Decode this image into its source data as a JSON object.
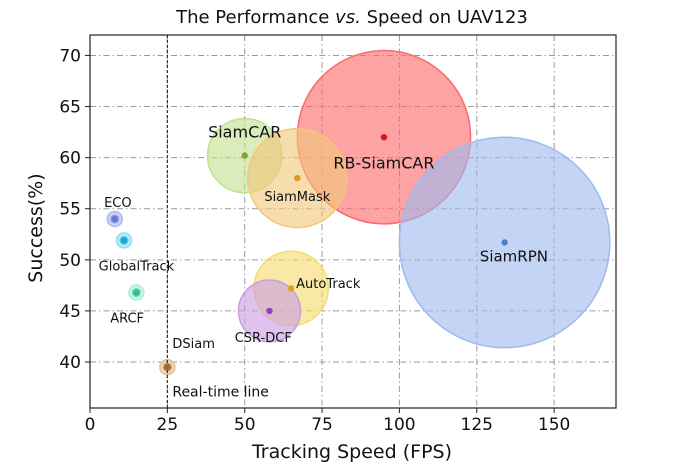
{
  "chart_data": {
    "type": "scatter",
    "title": {
      "part1": "The Performance ",
      "italic": "vs.",
      "part2": " Speed on UAV123"
    },
    "xlabel": "Tracking Speed (FPS)",
    "ylabel": "Success(%)",
    "xlim": [
      0,
      170
    ],
    "ylim": [
      35.5,
      72
    ],
    "x_ticks": [
      0,
      25,
      50,
      75,
      100,
      125,
      150
    ],
    "y_ticks": [
      40,
      45,
      50,
      55,
      60,
      65,
      70
    ],
    "grid": true,
    "reference_line": {
      "x": 25,
      "label": "Real-time line"
    },
    "points": [
      {
        "name": "RB-SiamCAR",
        "x": 95,
        "y": 62.0,
        "size": 28,
        "color": "#fb6a6a",
        "dot": "#e01414",
        "label_dx": 0,
        "label_dy": -2.6,
        "font": 16
      },
      {
        "name": "SiamRPN",
        "x": 134,
        "y": 51.7,
        "size": 34,
        "color": "#9ebaef",
        "dot": "#4e7fd1",
        "label_dx": 3,
        "label_dy": -1.4,
        "font": 15
      },
      {
        "name": "SiamCAR",
        "x": 50,
        "y": 60.2,
        "size": 12,
        "color": "#c2e18e",
        "dot": "#7aa83c",
        "label_dx": 0,
        "label_dy": 2.2,
        "font": 16
      },
      {
        "name": "SiamMask",
        "x": 67,
        "y": 58.0,
        "size": 16,
        "color": "#f2c77a",
        "dot": "#e09a1a",
        "label_dx": 0,
        "label_dy": -1.9,
        "font": 13
      },
      {
        "name": "AutoTrack",
        "x": 65,
        "y": 47.2,
        "size": 12,
        "color": "#f5dc6e",
        "dot": "#d9a516",
        "label_dx": 12,
        "label_dy": 0.4,
        "font": 13
      },
      {
        "name": "CSR-DCF",
        "x": 58,
        "y": 45.0,
        "size": 10,
        "color": "#c89ee3",
        "dot": "#8e3fc4",
        "label_dx": -2,
        "label_dy": -2.7,
        "font": 13
      },
      {
        "name": "ECO",
        "x": 8,
        "y": 54.0,
        "size": 0.5,
        "color": "#a9b8f2",
        "dot": "#6478d6",
        "label_dx": 1,
        "label_dy": 1.5,
        "font": 13
      },
      {
        "name": "GlobalTrack",
        "x": 11,
        "y": 51.9,
        "size": 1,
        "color": "#8ee0f3",
        "dot": "#19a8d4",
        "label_dx": 4,
        "label_dy": -2.6,
        "font": 13
      },
      {
        "name": "ARCF",
        "x": 15,
        "y": 46.8,
        "size": 1.4,
        "color": "#a6efd4",
        "dot": "#2fbf8e",
        "label_dx": -3,
        "label_dy": -2.6,
        "font": 13
      },
      {
        "name": "DSiam",
        "x": 25,
        "y": 39.5,
        "size": 1.8,
        "color": "#e3bf95",
        "dot": "#9b6a36",
        "label_dx": 8.5,
        "label_dy": 2.2,
        "font": 13
      }
    ]
  }
}
